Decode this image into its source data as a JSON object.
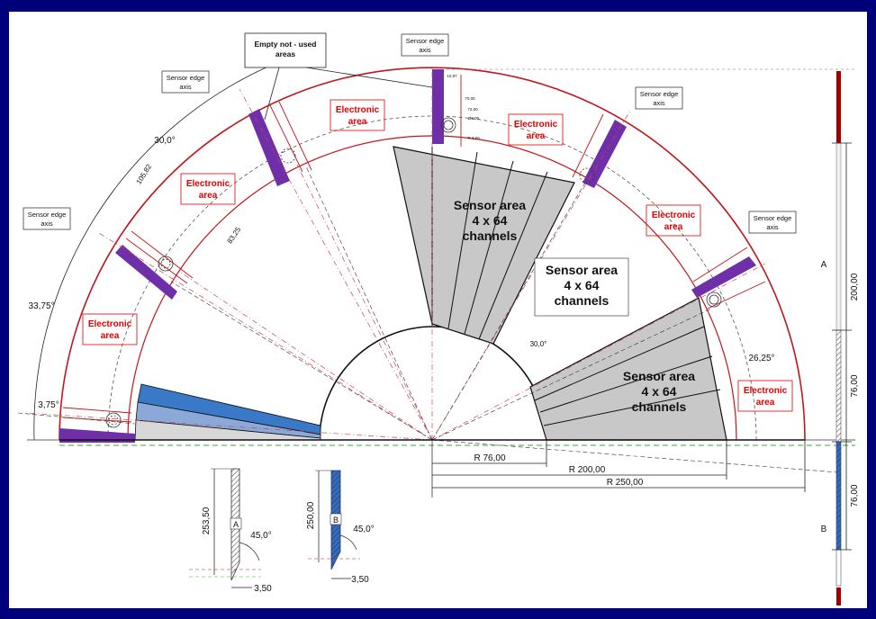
{
  "callouts": {
    "empty_areas": [
      "Empty not - used",
      "areas"
    ],
    "sensor_edge": [
      "Sensor edge",
      "axis"
    ]
  },
  "regions": {
    "electronic": [
      "Electronic",
      "area"
    ],
    "sensor": [
      "Sensor area",
      "4 x 64",
      "channels"
    ]
  },
  "angles": {
    "a30_top": "30,0°",
    "a3375": "33,75°",
    "a375": "3,75°",
    "a30_inner": "30,0°",
    "a2625": "26,25°",
    "a45_A": "45,0°",
    "a45_B": "45,0°"
  },
  "dims": {
    "d10582": "105,82",
    "d8325": "83,25",
    "r76": "R 76,00",
    "r200": "R 200,00",
    "r250": "R 250,00",
    "h25350": "253,50",
    "h250": "250,00",
    "w350_A": "3,50",
    "w350_B": "3,50",
    "side200": "200,00",
    "side76_top": "76,00",
    "side76_bot": "76,00",
    "detail_1": "10,97",
    "detail_2": "70,00",
    "detail_3": "72,00",
    "detail_4": "Ø8,00",
    "detail_5": "R 3,00"
  },
  "labels": {
    "A_side": "A",
    "B_side": "B",
    "A_part": "A",
    "B_part": "B"
  },
  "colors": {
    "frame": "#00007a",
    "arc_red": "#c0161c",
    "region_red": "#e00000",
    "sensor_gray": "#c8c8c8",
    "purple": "#6e2fa8",
    "blue1": "#3a78c8",
    "blue2": "#8aa8d8",
    "blue3": "#d8d8d8",
    "green_dash": "#3aa83a"
  }
}
